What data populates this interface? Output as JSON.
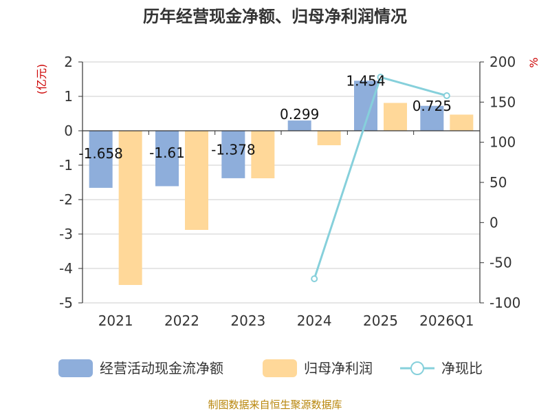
{
  "chart_data": {
    "type": "bar",
    "title": "历年经营现金净额、归母净利润情况",
    "categories": [
      "2021",
      "2022",
      "2023",
      "2024",
      "2025",
      "2026Q1"
    ],
    "series": [
      {
        "name": "经营活动现金流净额",
        "type": "bar",
        "axis": "left",
        "color": "#8eaedb",
        "values": [
          -1.658,
          -1.61,
          -1.378,
          0.299,
          1.454,
          0.725
        ],
        "labels": [
          "-1.658",
          "-1.61",
          "-1.378",
          "0.299",
          "1.454",
          "0.725"
        ]
      },
      {
        "name": "归母净利润",
        "type": "bar",
        "axis": "left",
        "color": "#ffd899",
        "values": [
          -4.48,
          -2.88,
          -1.38,
          -0.42,
          0.81,
          0.47
        ]
      },
      {
        "name": "净现比",
        "type": "line",
        "axis": "right",
        "color": "#86d0db",
        "values": [
          null,
          null,
          null,
          -70,
          181,
          158
        ]
      }
    ],
    "y_left": {
      "label": "(亿元)",
      "ylim": [
        -5,
        2
      ],
      "ticks": [
        2,
        1,
        0,
        -1,
        -2,
        -3,
        -4,
        -5
      ]
    },
    "y_right": {
      "label": "%",
      "ylim": [
        -100,
        200
      ],
      "ticks": [
        200,
        150,
        100,
        50,
        0,
        -50,
        -100
      ]
    },
    "legend_position": "bottom",
    "grid": true,
    "source": "制图数据来自恒生聚源数据库"
  }
}
